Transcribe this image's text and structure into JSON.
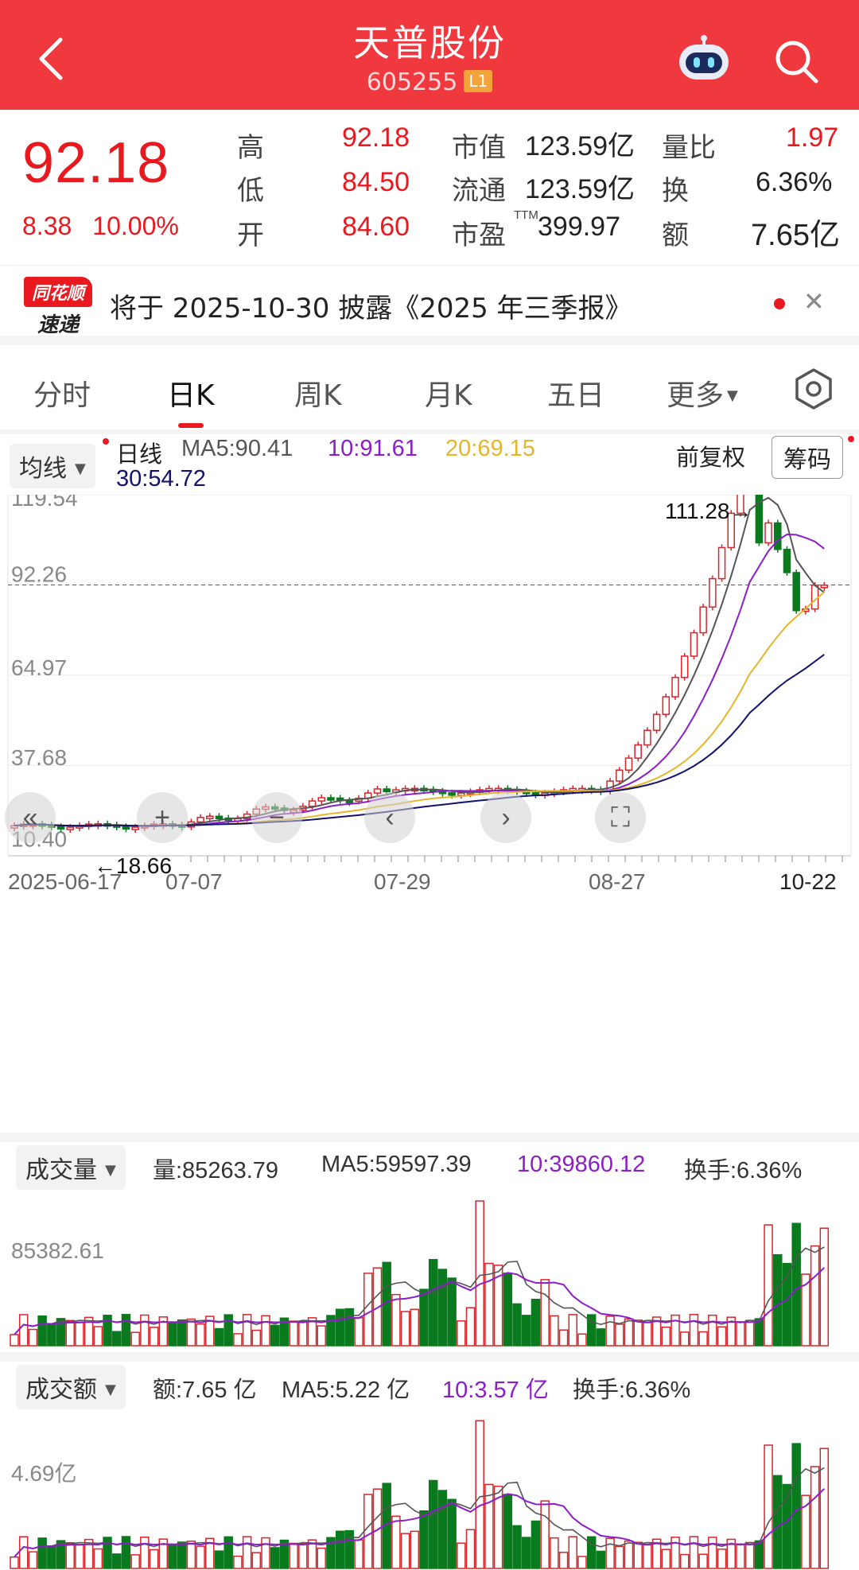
{
  "header": {
    "title": "天普股份",
    "code": "605255",
    "level_badge": "L1",
    "bg_color": "#f0393f"
  },
  "quote": {
    "price": "92.18",
    "change": "8.38",
    "change_pct": "10.00%",
    "high_label": "高",
    "high": "92.18",
    "low_label": "低",
    "low": "84.50",
    "open_label": "开",
    "open": "84.60",
    "mcap_label": "市值",
    "mcap": "123.59亿",
    "float_label": "流通",
    "float": "123.59亿",
    "pe_label": "市盈",
    "pe_sup": "TTM",
    "pe": "399.97",
    "vr_label": "量比",
    "vr": "1.97",
    "turn_label": "换",
    "turn": "6.36%",
    "amt_label": "额",
    "amt": "7.65亿"
  },
  "banner": {
    "logo_top": "同花顺",
    "logo_bottom": "速递",
    "text": "将于 2025-10-30 披露《2025 年三季报》"
  },
  "tabs": [
    "分时",
    "日K",
    "周K",
    "月K",
    "五日",
    "更多"
  ],
  "active_tab": "日K",
  "kline": {
    "dropdown": "均线",
    "period": "日线",
    "ma5": "MA5:90.41",
    "ma10": "10:91.61",
    "ma20": "20:69.15",
    "ma30": "30:54.72",
    "adjust": "前复权",
    "chips_button": "筹码",
    "y_labels": [
      "119.54",
      "92.26",
      "64.97",
      "37.68",
      "10.40"
    ],
    "max_marker": "111.28→",
    "min_marker": "←18.66",
    "x_labels": [
      "2025-06-17",
      "07-07",
      "07-29",
      "08-27",
      "10-22"
    ]
  },
  "volume": {
    "dropdown": "成交量",
    "vol": "量:85263.79",
    "ma5": "MA5:59597.39",
    "ma10": "10:39860.12",
    "turnover": "换手:6.36%",
    "y_label": "85382.61"
  },
  "amount": {
    "dropdown": "成交额",
    "amt": "额:7.65 亿",
    "ma5": "MA5:5.22 亿",
    "ma10": "10:3.57 亿",
    "turnover": "换手:6.36%",
    "y_label": "4.69亿"
  },
  "chart_data": {
    "type": "candlestick",
    "y_range": [
      10.4,
      119.54
    ],
    "reference_price": 92.26,
    "colors": {
      "up": "#d6262b",
      "down": "#0a7a1e",
      "ma5": "#555555",
      "ma10": "#8b1ec8",
      "ma20": "#e5b62b",
      "ma30": "#11116e"
    }
  }
}
